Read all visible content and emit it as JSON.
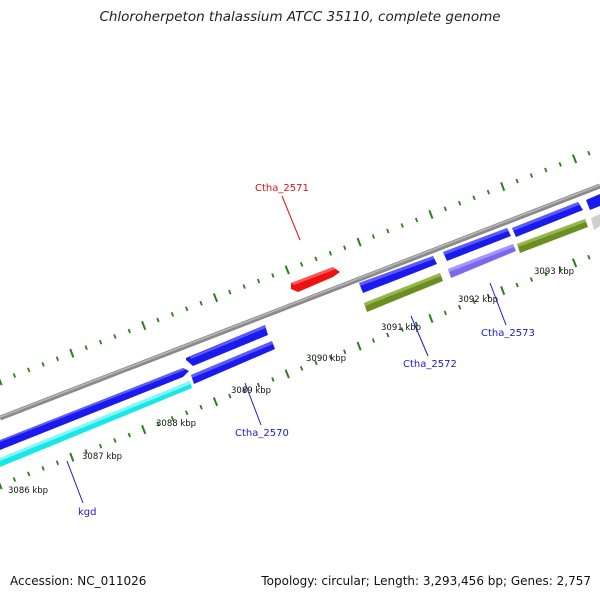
{
  "title": "Chloroherpeton thalassium ATCC 35110, complete genome",
  "footer": {
    "accession": "Accession: NC_011026",
    "summary": "Topology: circular; Length: 3,293,456 bp; Genes: 2,757"
  },
  "colors": {
    "backbone": "#8a8a8a",
    "ticks": "#2e7d1e",
    "forward_gene": "#1a1aee",
    "cyan_gene": "#19e6e6",
    "olive_gene": "#6b8e23",
    "lavender_gene": "#7b68ee",
    "red_gene": "#ee1111",
    "grey_gene": "#cfcfcf",
    "label_blue": "#1a1acc",
    "label_red": "#dd1111"
  },
  "scale_labels": [
    "3086 kbp",
    "3087 kbp",
    "3088 kbp",
    "3089 kbp",
    "3090 kbp",
    "3091 kbp",
    "3092 kbp",
    "3093 kbp"
  ],
  "gene_labels": [
    {
      "text": "kgd",
      "color": "blue"
    },
    {
      "text": "Ctha_2570",
      "color": "blue"
    },
    {
      "text": "Ctha_2571",
      "color": "red"
    },
    {
      "text": "Ctha_2572",
      "color": "blue"
    },
    {
      "text": "Ctha_2573",
      "color": "blue"
    }
  ]
}
